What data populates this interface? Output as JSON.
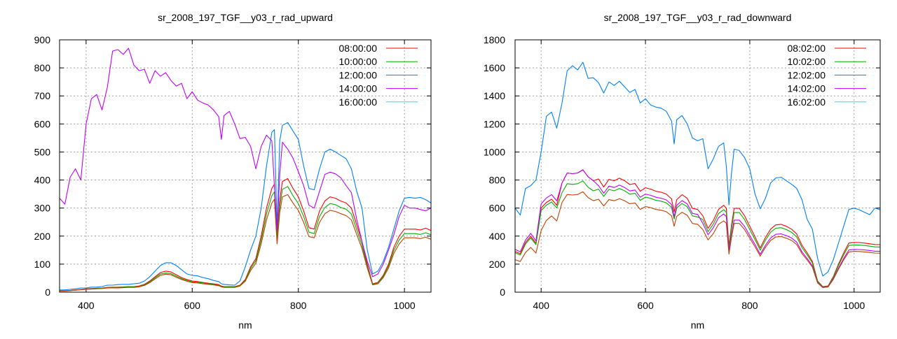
{
  "chart_data": [
    {
      "type": "line",
      "title": "sr_2008_197_TGF__y03_r_rad_upward",
      "xlabel": "nm",
      "ylabel": "",
      "xlim": [
        350,
        1050
      ],
      "ylim": [
        0,
        900
      ],
      "xticks": [
        400,
        600,
        800,
        1000
      ],
      "xtick_labels": [
        "400",
        "600",
        "800",
        "1000"
      ],
      "yticks": [
        0,
        100,
        200,
        300,
        400,
        500,
        600,
        700,
        800,
        900
      ],
      "ytick_labels": [
        "0",
        "100",
        "200",
        "300",
        "400",
        "500",
        "600",
        "700",
        "800",
        "900"
      ],
      "grid": true,
      "legend_position": "top-right",
      "x": [
        350,
        360,
        370,
        380,
        390,
        400,
        410,
        420,
        430,
        440,
        450,
        460,
        470,
        480,
        490,
        500,
        510,
        520,
        530,
        540,
        550,
        560,
        570,
        580,
        590,
        600,
        610,
        620,
        630,
        640,
        650,
        655,
        660,
        670,
        680,
        690,
        700,
        710,
        720,
        730,
        740,
        750,
        755,
        760,
        765,
        770,
        780,
        790,
        800,
        810,
        820,
        830,
        840,
        850,
        860,
        870,
        880,
        890,
        900,
        910,
        920,
        930,
        940,
        950,
        960,
        970,
        980,
        990,
        1000,
        1010,
        1020,
        1030,
        1040,
        1050
      ],
      "series": [
        {
          "name": "08:00:00",
          "color": "#ff0000",
          "legend_color": "#ff0000",
          "values": [
            5,
            5,
            6,
            8,
            10,
            12,
            13,
            14,
            15,
            17,
            18,
            18,
            19,
            20,
            20,
            22,
            28,
            40,
            55,
            70,
            75,
            72,
            62,
            52,
            45,
            40,
            38,
            35,
            32,
            30,
            27,
            22,
            20,
            20,
            20,
            25,
            45,
            90,
            120,
            200,
            300,
            370,
            385,
            200,
            330,
            395,
            405,
            370,
            340,
            290,
            230,
            225,
            290,
            325,
            340,
            335,
            325,
            318,
            300,
            240,
            180,
            100,
            30,
            35,
            60,
            100,
            160,
            200,
            225,
            225,
            225,
            222,
            228,
            220
          ]
        },
        {
          "name": "10:00:00",
          "color": "#00b000",
          "legend_color": "#00b000",
          "values": [
            5,
            5,
            6,
            7,
            9,
            11,
            12,
            13,
            14,
            16,
            17,
            17,
            18,
            19,
            19,
            20,
            26,
            37,
            51,
            65,
            68,
            66,
            57,
            48,
            42,
            37,
            35,
            33,
            30,
            28,
            25,
            20,
            19,
            19,
            19,
            23,
            42,
            84,
            112,
            186,
            279,
            344,
            358,
            190,
            307,
            367,
            377,
            344,
            316,
            270,
            214,
            209,
            270,
            302,
            316,
            312,
            302,
            296,
            279,
            223,
            167,
            93,
            28,
            33,
            56,
            93,
            149,
            186,
            209,
            209,
            209,
            206,
            212,
            205
          ]
        },
        {
          "name": "12:00:00",
          "color": "#0080ff",
          "legend_color": "#0080ff",
          "values": [
            8,
            8,
            10,
            12,
            15,
            15,
            18,
            18,
            20,
            25,
            25,
            27,
            28,
            28,
            30,
            32,
            40,
            55,
            75,
            95,
            105,
            105,
            95,
            80,
            65,
            60,
            58,
            52,
            48,
            42,
            38,
            30,
            28,
            26,
            25,
            40,
            90,
            150,
            200,
            300,
            450,
            570,
            580,
            230,
            540,
            595,
            605,
            575,
            545,
            450,
            370,
            365,
            440,
            500,
            510,
            500,
            488,
            476,
            440,
            360,
            300,
            150,
            65,
            75,
            110,
            160,
            225,
            290,
            335,
            338,
            335,
            338,
            330,
            318
          ]
        },
        {
          "name": "14:00:00",
          "color": "#c000ff",
          "legend_color": "#c000ff",
          "values": [
            335,
            314,
            410,
            440,
            400,
            600,
            690,
            705,
            650,
            730,
            860,
            865,
            848,
            870,
            810,
            790,
            795,
            745,
            790,
            770,
            783,
            755,
            735,
            745,
            690,
            715,
            685,
            675,
            668,
            650,
            626,
            545,
            630,
            645,
            600,
            548,
            552,
            520,
            440,
            520,
            560,
            540,
            380,
            220,
            420,
            535,
            510,
            478,
            430,
            380,
            310,
            300,
            360,
            420,
            428,
            422,
            408,
            380,
            355,
            260,
            180,
            110,
            55,
            65,
            100,
            150,
            205,
            270,
            310,
            300,
            300,
            295,
            290,
            300
          ]
        },
        {
          "name": "16:00:00",
          "color": "#c04000",
          "legend_color": "#00eeee",
          "values": [
            4,
            4,
            5,
            7,
            9,
            10,
            11,
            12,
            13,
            15,
            15,
            15,
            16,
            17,
            17,
            19,
            24,
            34,
            47,
            60,
            64,
            62,
            53,
            45,
            39,
            34,
            33,
            30,
            28,
            26,
            23,
            19,
            17,
            17,
            17,
            22,
            39,
            77,
            103,
            172,
            258,
            318,
            331,
            172,
            284,
            340,
            348,
            318,
            292,
            249,
            198,
            194,
            249,
            280,
            292,
            288,
            280,
            273,
            258,
            206,
            155,
            86,
            26,
            30,
            52,
            86,
            138,
            172,
            194,
            194,
            194,
            191,
            196,
            189
          ]
        }
      ]
    },
    {
      "type": "line",
      "title": "sr_2008_197_TGF__y03_r_rad_downward",
      "xlabel": "nm",
      "ylabel": "",
      "xlim": [
        350,
        1050
      ],
      "ylim": [
        0,
        1800
      ],
      "xticks": [
        400,
        600,
        800,
        1000
      ],
      "xtick_labels": [
        "400",
        "600",
        "800",
        "1000"
      ],
      "yticks": [
        0,
        200,
        400,
        600,
        800,
        1000,
        1200,
        1400,
        1600,
        1800
      ],
      "ytick_labels": [
        "0",
        "200",
        "400",
        "600",
        "800",
        "1000",
        "1200",
        "1400",
        "1600",
        "1800"
      ],
      "grid": true,
      "legend_position": "top-right",
      "x": [
        350,
        360,
        370,
        380,
        390,
        400,
        410,
        420,
        430,
        440,
        450,
        460,
        470,
        480,
        490,
        500,
        510,
        520,
        530,
        540,
        550,
        560,
        570,
        580,
        590,
        600,
        610,
        620,
        630,
        640,
        650,
        655,
        660,
        670,
        680,
        690,
        700,
        710,
        720,
        730,
        740,
        750,
        755,
        760,
        765,
        770,
        780,
        790,
        800,
        810,
        820,
        830,
        840,
        850,
        860,
        870,
        880,
        890,
        900,
        910,
        920,
        930,
        940,
        950,
        960,
        970,
        980,
        990,
        1000,
        1010,
        1020,
        1030,
        1040,
        1050
      ],
      "series": [
        {
          "name": "08:02:00",
          "color": "#ff0000",
          "legend_color": "#ff0000",
          "values": [
            290,
            274,
            354,
            399,
            349,
            600,
            640,
            663,
            620,
            780,
            850,
            845,
            850,
            873,
            823,
            795,
            808,
            750,
            805,
            795,
            813,
            795,
            768,
            775,
            720,
            745,
            735,
            720,
            713,
            700,
            665,
            573,
            660,
            695,
            670,
            598,
            590,
            545,
            455,
            510,
            590,
            620,
            600,
            330,
            480,
            598,
            598,
            545,
            470,
            395,
            315,
            390,
            450,
            480,
            484,
            470,
            450,
            415,
            335,
            280,
            220,
            80,
            40,
            45,
            110,
            200,
            280,
            350,
            355,
            354,
            350,
            345,
            340,
            339
          ]
        },
        {
          "name": "10:02:00",
          "color": "#00b000",
          "legend_color": "#00b000",
          "values": [
            281,
            266,
            343,
            387,
            339,
            582,
            621,
            643,
            601,
            710,
            774,
            769,
            774,
            794,
            749,
            723,
            735,
            683,
            733,
            723,
            740,
            723,
            699,
            705,
            655,
            678,
            669,
            655,
            649,
            637,
            605,
            521,
            601,
            632,
            610,
            544,
            537,
            518,
            432,
            485,
            561,
            589,
            570,
            314,
            456,
            568,
            568,
            518,
            447,
            375,
            299,
            371,
            428,
            456,
            460,
            447,
            428,
            394,
            318,
            266,
            209,
            76,
            38,
            43,
            105,
            190,
            266,
            333,
            337,
            336,
            333,
            328,
            323,
            322
          ]
        },
        {
          "name": "12:02:00",
          "color": "#0080ff",
          "legend_color": "#0080ff",
          "values": [
            600,
            550,
            740,
            760,
            800,
            1000,
            1255,
            1285,
            1170,
            1350,
            1580,
            1615,
            1585,
            1640,
            1525,
            1530,
            1495,
            1420,
            1500,
            1475,
            1505,
            1465,
            1425,
            1446,
            1350,
            1380,
            1335,
            1320,
            1313,
            1290,
            1220,
            1057,
            1230,
            1260,
            1200,
            1100,
            1080,
            1095,
            880,
            950,
            1040,
            1065,
            900,
            623,
            853,
            1020,
            1010,
            960,
            880,
            700,
            595,
            670,
            780,
            815,
            820,
            795,
            770,
            740,
            660,
            520,
            450,
            240,
            115,
            145,
            230,
            350,
            470,
            590,
            600,
            588,
            570,
            553,
            600,
            588
          ]
        },
        {
          "name": "14:02:00",
          "color": "#c000ff",
          "legend_color": "#c000ff",
          "values": [
            305,
            288,
            372,
            419,
            366,
            630,
            672,
            696,
            651,
            780,
            850,
            845,
            850,
            873,
            823,
            795,
            760,
            705,
            757,
            747,
            764,
            747,
            722,
            729,
            677,
            700,
            691,
            677,
            670,
            658,
            625,
            539,
            620,
            653,
            630,
            562,
            555,
            491,
            410,
            459,
            531,
            558,
            540,
            297,
            413,
            514,
            514,
            469,
            404,
            340,
            271,
            335,
            387,
            413,
            416,
            404,
            387,
            357,
            288,
            241,
            189,
            69,
            34,
            39,
            95,
            172,
            241,
            301,
            305,
            304,
            301,
            297,
            292,
            292
          ]
        },
        {
          "name": "16:02:00",
          "color": "#c04000",
          "legend_color": "#00eeee",
          "values": [
            232,
            219,
            283,
            319,
            279,
            440,
            512,
            544,
            508,
            640,
            697,
            693,
            697,
            716,
            675,
            652,
            663,
            615,
            660,
            652,
            667,
            652,
            630,
            636,
            590,
            611,
            603,
            590,
            585,
            574,
            545,
            470,
            541,
            570,
            549,
            490,
            484,
            447,
            373,
            418,
            484,
            508,
            492,
            271,
            394,
            490,
            490,
            447,
            385,
            324,
            258,
            320,
            369,
            394,
            397,
            385,
            369,
            340,
            275,
            230,
            180,
            66,
            33,
            37,
            90,
            164,
            230,
            287,
            291,
            290,
            287,
            283,
            279,
            278
          ]
        }
      ]
    }
  ]
}
